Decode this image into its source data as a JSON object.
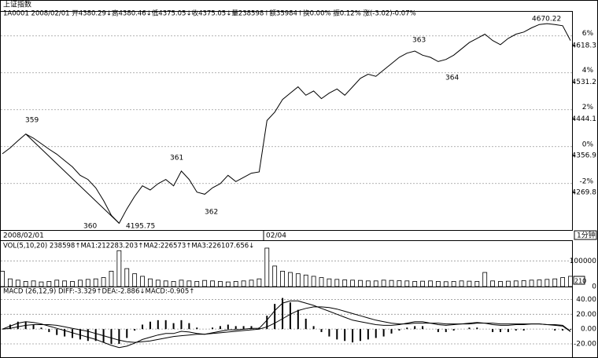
{
  "chart_data": {
    "type": "stock-intraday",
    "title": "上证指数",
    "info": "1A0001  2008/02/01 开4380.29↓高4380.46↓低4375.05↓收4375.05↓量238598↑额35984↑换0.00% 振0.12% 涨(-3.02)-0.07%",
    "annotations": [
      "359",
      "360",
      "361",
      "362",
      "363",
      "364",
      "4195.75",
      "4670.22"
    ],
    "x_labels": [
      "2008/02/01",
      "02/04",
      "1分钟"
    ],
    "ylim": [
      4180,
      4700
    ],
    "yticks": [
      4618.3,
      4531.2,
      4444.1,
      4356.9,
      4269.8
    ],
    "y2lim": [
      -4.52,
      7.35
    ],
    "y2ticks": [
      {
        "value": 6,
        "label": "6%"
      },
      {
        "value": 4,
        "label": "4%"
      },
      {
        "value": 2,
        "label": "2%"
      },
      {
        "value": 0,
        "label": "0%"
      },
      {
        "value": -2,
        "label": "-2%"
      }
    ],
    "grid": true,
    "color": "#000000",
    "series": [
      {
        "name": "上证指数",
        "color": "#000000",
        "values": [
          4361,
          4375,
          4392,
          4408,
          4398,
          4385,
          4372,
          4360,
          4345,
          4330,
          4310,
          4300,
          4280,
          4250,
          4215,
          4196,
          4230,
          4260,
          4285,
          4275,
          4290,
          4300,
          4285,
          4320,
          4300,
          4270,
          4265,
          4280,
          4290,
          4310,
          4295,
          4305,
          4315,
          4318,
          4440,
          4460,
          4490,
          4505,
          4520,
          4500,
          4510,
          4492,
          4505,
          4515,
          4500,
          4520,
          4540,
          4550,
          4545,
          4560,
          4575,
          4590,
          4600,
          4605,
          4595,
          4590,
          4580,
          4585,
          4595,
          4610,
          4625,
          4635,
          4645,
          4630,
          4620,
          4635,
          4645,
          4650,
          4660,
          4668,
          4670,
          4668,
          4665,
          4630
        ]
      }
    ],
    "volume": {
      "title": "VOL(5,10,20) 238598↑MA1:212283.203↑MA2:226573↑MA3:226107.656↓",
      "ylim": [
        0,
        150000
      ],
      "yticks": [
        {
          "value": 100000,
          "label": "100000"
        },
        0
      ],
      "unit_label": "210",
      "values": [
        60000,
        30000,
        25000,
        20000,
        22000,
        18000,
        20000,
        25000,
        22000,
        20000,
        25000,
        28000,
        30000,
        35000,
        60000,
        140000,
        70000,
        50000,
        40000,
        30000,
        25000,
        22000,
        20000,
        25000,
        22000,
        20000,
        24000,
        22000,
        20000,
        18000,
        20000,
        22000,
        25000,
        30000,
        150000,
        80000,
        60000,
        55000,
        50000,
        45000,
        40000,
        35000,
        30000,
        28000,
        26000,
        25000,
        24000,
        22000,
        22000,
        25000,
        24000,
        23000,
        22000,
        20000,
        21000,
        22000,
        20000,
        19000,
        20000,
        22000,
        21000,
        20000,
        55000,
        22000,
        20000,
        21000,
        22000,
        23000,
        25000,
        26000,
        28000,
        30000,
        35000,
        40000
      ]
    },
    "macd": {
      "title": "MACD (26,12,9) DIFF:-3.329↑DEA:-2.886↓MACD:-0.905↑",
      "ylim": [
        -38,
        50
      ],
      "yticks": [
        {
          "value": 40,
          "label": "40.00"
        },
        {
          "value": 20,
          "label": "20.00"
        },
        {
          "value": 0,
          "label": "0.00"
        },
        {
          "value": -20,
          "label": "-20.00"
        }
      ],
      "series": [
        {
          "name": "DIFF",
          "color": "#000000",
          "values": [
            0,
            4,
            8,
            10,
            9,
            7,
            4,
            1,
            -2,
            -5,
            -8,
            -11,
            -14,
            -18,
            -22,
            -25,
            -23,
            -19,
            -14,
            -11,
            -8,
            -6,
            -6,
            -3,
            -4,
            -6,
            -7,
            -5,
            -3,
            -1,
            -1,
            0,
            1,
            1,
            12,
            25,
            35,
            38,
            38,
            35,
            32,
            28,
            24,
            20,
            16,
            12,
            10,
            8,
            6,
            5,
            5,
            6,
            8,
            10,
            10,
            8,
            6,
            5,
            6,
            7,
            8,
            9,
            8,
            6,
            5,
            5,
            6,
            6,
            7,
            7,
            6,
            5,
            4,
            -3.329
          ]
        },
        {
          "name": "DEA",
          "color": "#000000",
          "values": [
            0,
            1,
            3,
            5,
            6,
            6,
            6,
            5,
            3,
            1,
            -1,
            -3,
            -6,
            -9,
            -12,
            -15,
            -17,
            -18,
            -17,
            -16,
            -14,
            -12,
            -10,
            -9,
            -8,
            -7,
            -7,
            -6,
            -5,
            -4,
            -3,
            -2,
            -1,
            0,
            3,
            8,
            14,
            20,
            25,
            28,
            30,
            30,
            29,
            27,
            24,
            21,
            18,
            15,
            12,
            10,
            8,
            7,
            7,
            8,
            8,
            8,
            8,
            7,
            7,
            7,
            7,
            8,
            8,
            8,
            7,
            7,
            7,
            7,
            7,
            7,
            6,
            6,
            5,
            -2.886
          ]
        }
      ],
      "hist": [
        0,
        6,
        10,
        10,
        6,
        2,
        -4,
        -8,
        -10,
        -12,
        -14,
        -16,
        -16,
        -18,
        -20,
        -20,
        -12,
        -2,
        6,
        10,
        12,
        12,
        8,
        12,
        8,
        2,
        0,
        2,
        4,
        6,
        4,
        4,
        4,
        2,
        18,
        34,
        42,
        36,
        26,
        14,
        4,
        -4,
        -10,
        -14,
        -16,
        -18,
        -16,
        -14,
        -12,
        -10,
        -6,
        -2,
        2,
        4,
        4,
        0,
        -4,
        -4,
        -2,
        0,
        2,
        2,
        0,
        -4,
        -4,
        -4,
        -2,
        -2,
        0,
        0,
        0,
        -2,
        -2,
        -0.905
      ]
    }
  }
}
